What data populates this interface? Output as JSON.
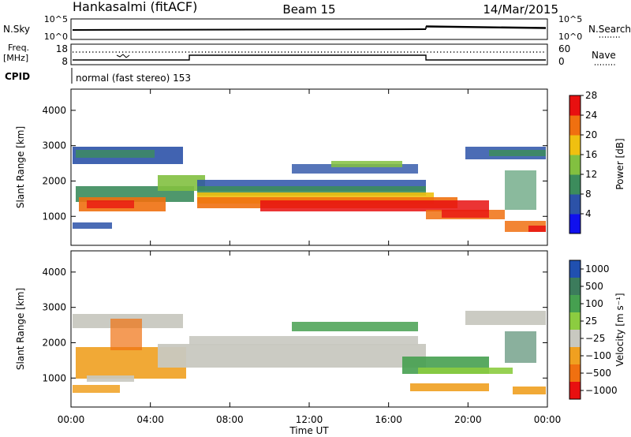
{
  "header": {
    "station": "Hankasalmi (fitACF)",
    "beam": "Beam 15",
    "date": "14/Mar/2015"
  },
  "chart_data": [
    {
      "type": "line",
      "panel": "noise",
      "left_label": "N.Sky",
      "right_label": "N.Search",
      "left_ticks": [
        "10^5",
        "10^0"
      ],
      "right_ticks": [
        "10^5",
        "10^0"
      ]
    },
    {
      "type": "line",
      "panel": "frequency",
      "left_label_top": "Freq.",
      "left_label_bottom": "[MHz]",
      "right_label": "Nave",
      "left_ticks": [
        "18",
        "8"
      ],
      "right_ticks": [
        "60",
        "0"
      ]
    },
    {
      "type": "table",
      "panel": "cpid",
      "label": "CPID",
      "value": "normal (fast stereo) 153"
    },
    {
      "type": "heatmap",
      "panel": "power",
      "title": "",
      "xlabel": "Time UT",
      "ylabel": "Slant Range [km]",
      "x_ticks": [
        "00:00",
        "04:00",
        "08:00",
        "12:00",
        "16:00",
        "20:00",
        "00:00"
      ],
      "y_ticks": [
        1000,
        2000,
        3000,
        4000
      ],
      "xlim_hours": [
        0,
        24
      ],
      "ylim_km": [
        180,
        4600
      ],
      "colorbar": {
        "label": "Power [dB]",
        "ticks": [
          "4",
          "8",
          "12",
          "16",
          "20",
          "24",
          "28"
        ],
        "colors": [
          "#1010ee",
          "#2c52a8",
          "#3c8c5c",
          "#82c040",
          "#f0c010",
          "#f07010",
          "#e81010"
        ]
      }
    },
    {
      "type": "heatmap",
      "panel": "velocity",
      "title": "",
      "xlabel": "Time UT",
      "ylabel": "Slant Range [km]",
      "x_ticks": [
        "00:00",
        "04:00",
        "08:00",
        "12:00",
        "16:00",
        "20:00",
        "00:00"
      ],
      "y_ticks": [
        1000,
        2000,
        3000,
        4000
      ],
      "xlim_hours": [
        0,
        24
      ],
      "ylim_km": [
        180,
        4600
      ],
      "colorbar": {
        "label": "Velocity [m s⁻¹]",
        "ticks": [
          "1000",
          "500",
          "100",
          "25",
          "−25",
          "−100",
          "−500",
          "−1000"
        ],
        "colors": [
          "#2050b0",
          "#3c7c5c",
          "#46a050",
          "#8ccc40",
          "#c8c8c0",
          "#f0a020",
          "#f07010",
          "#e81010"
        ]
      }
    }
  ]
}
